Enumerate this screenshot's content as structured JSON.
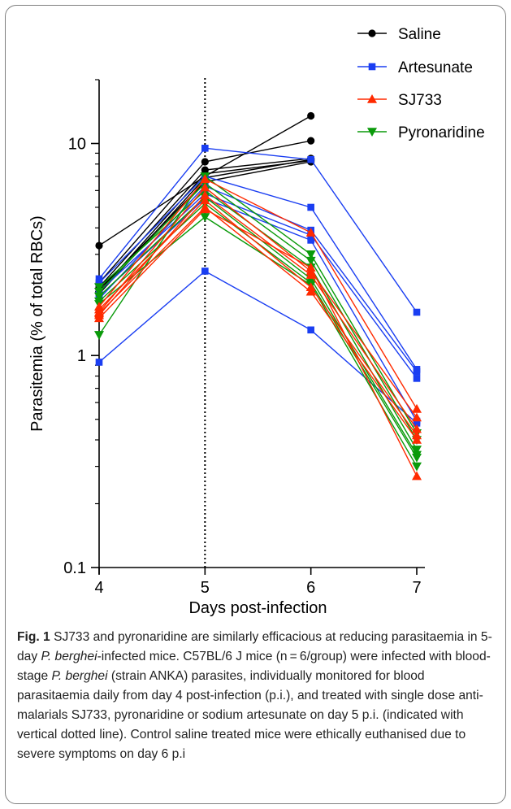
{
  "chart_data": {
    "type": "line",
    "y_scale": "log",
    "xlabel": "Days post-infection",
    "ylabel": "Parasitemia (% of total RBCs)",
    "x_ticks": [
      "4",
      "5",
      "6",
      "7"
    ],
    "y_ticks": [
      "0.1",
      "1",
      "10"
    ],
    "ylim": [
      0.1,
      20
    ],
    "xlim": [
      4,
      7
    ],
    "reference_line": {
      "x": 5,
      "style": "dotted"
    },
    "legend": [
      "Saline",
      "Artesunate",
      "SJ733",
      "Pyronaridine"
    ],
    "groups": [
      {
        "name": "Saline",
        "color": "#000000",
        "marker": "circle",
        "mice": [
          {
            "x": [
              4,
              5,
              6
            ],
            "y": [
              3.3,
              7.0,
              13.5
            ]
          },
          {
            "x": [
              4,
              5,
              6
            ],
            "y": [
              2.2,
              8.2,
              10.3
            ]
          },
          {
            "x": [
              4,
              5,
              6
            ],
            "y": [
              2.1,
              7.5,
              8.5
            ]
          },
          {
            "x": [
              4,
              5,
              6
            ],
            "y": [
              2.0,
              7.2,
              8.3
            ]
          },
          {
            "x": [
              4,
              5,
              6
            ],
            "y": [
              1.95,
              6.9,
              8.4
            ]
          },
          {
            "x": [
              4,
              5,
              6
            ],
            "y": [
              2.05,
              6.6,
              8.2
            ]
          }
        ]
      },
      {
        "name": "Artesunate",
        "color": "#1a3ef2",
        "marker": "square",
        "mice": [
          {
            "x": [
              4,
              5,
              6,
              7
            ],
            "y": [
              2.3,
              9.5,
              8.4,
              1.6
            ]
          },
          {
            "x": [
              4,
              5,
              6,
              7
            ],
            "y": [
              2.2,
              7.0,
              5.0,
              0.86
            ]
          },
          {
            "x": [
              4,
              5,
              6,
              7
            ],
            "y": [
              1.85,
              6.3,
              3.9,
              0.84
            ]
          },
          {
            "x": [
              4,
              5,
              6,
              7
            ],
            "y": [
              2.0,
              5.8,
              3.7,
              0.78
            ]
          },
          {
            "x": [
              4,
              5,
              6,
              7
            ],
            "y": [
              1.9,
              5.5,
              3.5,
              0.49
            ]
          },
          {
            "x": [
              4,
              5,
              6,
              7
            ],
            "y": [
              0.93,
              2.5,
              1.32,
              0.48
            ]
          }
        ]
      },
      {
        "name": "SJ733",
        "color": "#ff2a00",
        "marker": "triangle-up",
        "mice": [
          {
            "x": [
              4,
              5,
              6,
              7
            ],
            "y": [
              1.7,
              6.8,
              3.8,
              0.56
            ]
          },
          {
            "x": [
              4,
              5,
              6,
              7
            ],
            "y": [
              1.6,
              6.2,
              2.5,
              0.51
            ]
          },
          {
            "x": [
              4,
              5,
              6,
              7
            ],
            "y": [
              1.55,
              5.7,
              2.4,
              0.45
            ]
          },
          {
            "x": [
              4,
              5,
              6,
              7
            ],
            "y": [
              1.65,
              5.4,
              2.1,
              0.42
            ]
          },
          {
            "x": [
              4,
              5,
              6,
              7
            ],
            "y": [
              1.58,
              5.0,
              2.0,
              0.4
            ]
          },
          {
            "x": [
              4,
              5,
              6,
              7
            ],
            "y": [
              1.5,
              4.9,
              2.6,
              0.27
            ]
          }
        ]
      },
      {
        "name": "Pyronaridine",
        "color": "#0a9a0a",
        "marker": "triangle-down",
        "mice": [
          {
            "x": [
              4,
              5,
              6,
              7
            ],
            "y": [
              1.25,
              7.0,
              3.0,
              0.43
            ]
          },
          {
            "x": [
              4,
              5,
              6,
              7
            ],
            "y": [
              2.0,
              6.5,
              2.8,
              0.4
            ]
          },
          {
            "x": [
              4,
              5,
              6,
              7
            ],
            "y": [
              2.1,
              6.0,
              2.6,
              0.36
            ]
          },
          {
            "x": [
              4,
              5,
              6,
              7
            ],
            "y": [
              1.9,
              5.6,
              2.3,
              0.34
            ]
          },
          {
            "x": [
              4,
              5,
              6,
              7
            ],
            "y": [
              1.8,
              5.2,
              2.2,
              0.33
            ]
          },
          {
            "x": [
              4,
              5,
              6,
              7
            ],
            "y": [
              1.75,
              4.5,
              2.15,
              0.3
            ]
          }
        ]
      }
    ]
  },
  "caption": {
    "fig_label": "Fig. 1",
    "t1": " SJ733 and pyronaridine are similarly efficacious at reducing parasitaemia in 5-day ",
    "pb1": "P. berghei",
    "t2": "-infected mice. C57BL/6 J mice (n = 6/group) were infected with blood-stage ",
    "pb2": "P. berghei",
    "t3": " (strain ANKA) parasites, individually monitored for blood parasitaemia daily from day 4 post-infection (p.i.), and treated with single dose anti-malarials SJ733, pyronaridine or sodium artesunate on day 5 p.i. (indicated with vertical dotted line). Control saline treated mice were ethically euthanised due to severe symptoms on day 6 p.i"
  }
}
